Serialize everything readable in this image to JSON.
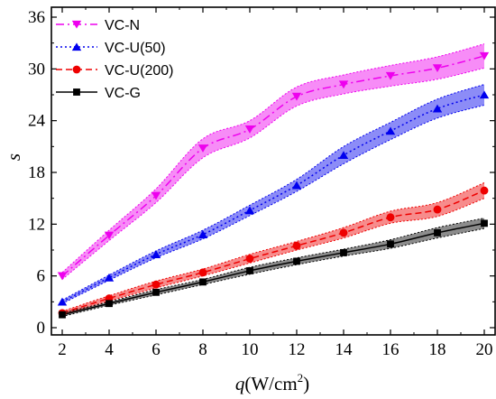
{
  "chart_data": {
    "type": "line",
    "xlabel_var": "q",
    "xlabel_unit_prefix": "(W/cm",
    "xlabel_unit_exp": "2",
    "xlabel_unit_suffix": ")",
    "ylabel": "s",
    "xlim": [
      2,
      20
    ],
    "ylim": [
      0,
      36
    ],
    "x_ticks": [
      2,
      4,
      6,
      8,
      10,
      12,
      14,
      16,
      18,
      20
    ],
    "y_ticks": [
      0,
      6,
      12,
      18,
      24,
      30,
      36
    ],
    "grid": false,
    "legend_position": "top-left",
    "x": [
      2,
      4,
      6,
      8,
      10,
      12,
      14,
      16,
      18,
      20
    ],
    "series": [
      {
        "name": "VC-N",
        "color": "#ee00ee",
        "marker": "triangle-down",
        "line_style": "dash-dot",
        "values": [
          6.0,
          10.7,
          15.3,
          20.8,
          23.0,
          26.8,
          28.2,
          29.2,
          30.1,
          31.5
        ],
        "lower": [
          5.6,
          10.1,
          14.5,
          19.7,
          22.0,
          25.7,
          27.1,
          28.0,
          28.8,
          30.1
        ],
        "upper": [
          6.4,
          11.3,
          16.1,
          21.9,
          24.0,
          27.9,
          29.3,
          30.4,
          31.4,
          32.9
        ]
      },
      {
        "name": "VC-U(50)",
        "color": "#0000ee",
        "marker": "triangle-up",
        "line_style": "dotted",
        "values": [
          3.0,
          5.8,
          8.5,
          10.8,
          13.6,
          16.5,
          20.0,
          22.8,
          25.4,
          27.0
        ],
        "lower": [
          2.8,
          5.5,
          8.1,
          10.3,
          13.0,
          15.8,
          19.0,
          21.8,
          24.3,
          25.8
        ],
        "upper": [
          3.2,
          6.1,
          8.9,
          11.3,
          14.2,
          17.2,
          21.0,
          23.8,
          26.5,
          28.2
        ]
      },
      {
        "name": "VC-U(200)",
        "color": "#ee0000",
        "marker": "circle",
        "line_style": "dashed",
        "values": [
          1.7,
          3.4,
          5.0,
          6.4,
          8.0,
          9.5,
          11.0,
          12.8,
          13.7,
          15.9
        ],
        "lower": [
          1.5,
          3.1,
          4.6,
          6.0,
          7.5,
          9.0,
          10.4,
          12.1,
          12.9,
          15.0
        ],
        "upper": [
          1.9,
          3.7,
          5.4,
          6.8,
          8.5,
          10.0,
          11.6,
          13.5,
          14.5,
          16.8
        ]
      },
      {
        "name": "VC-G",
        "color": "#000000",
        "marker": "square",
        "line_style": "solid",
        "values": [
          1.5,
          2.8,
          4.1,
          5.3,
          6.6,
          7.7,
          8.7,
          9.7,
          11.0,
          12.1
        ],
        "lower": [
          1.3,
          2.6,
          3.8,
          5.0,
          6.2,
          7.3,
          8.3,
          9.2,
          10.4,
          11.5
        ],
        "upper": [
          1.7,
          3.0,
          4.4,
          5.6,
          7.0,
          8.1,
          9.1,
          10.2,
          11.6,
          12.7
        ]
      }
    ]
  }
}
